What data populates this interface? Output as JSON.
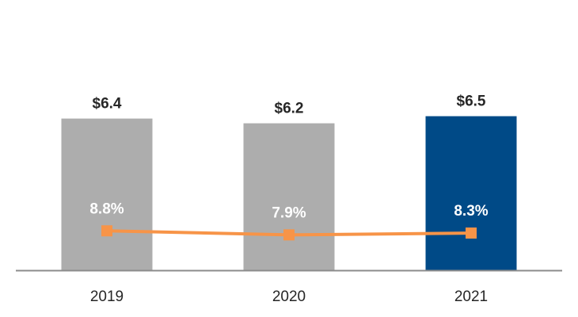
{
  "chart_data": {
    "type": "bar",
    "categories": [
      "2019",
      "2020",
      "2021"
    ],
    "series": [
      {
        "values": [
          6.4,
          6.2,
          6.5
        ],
        "value_labels": [
          "$6.4",
          "$6.2",
          "$6.5"
        ],
        "colors": [
          "#adadad",
          "#adadad",
          "#004a87"
        ]
      },
      {
        "type": "line",
        "values": [
          8.8,
          7.9,
          8.3
        ],
        "value_labels": [
          "8.8%",
          "7.9%",
          "8.3%"
        ],
        "color": "#f79448",
        "marker": "square"
      }
    ],
    "title": "",
    "xlabel": "",
    "ylabel": "",
    "ylim": [
      0,
      10.7
    ],
    "line_ylim": [
      0,
      40
    ],
    "grid": false,
    "legend": "none"
  }
}
